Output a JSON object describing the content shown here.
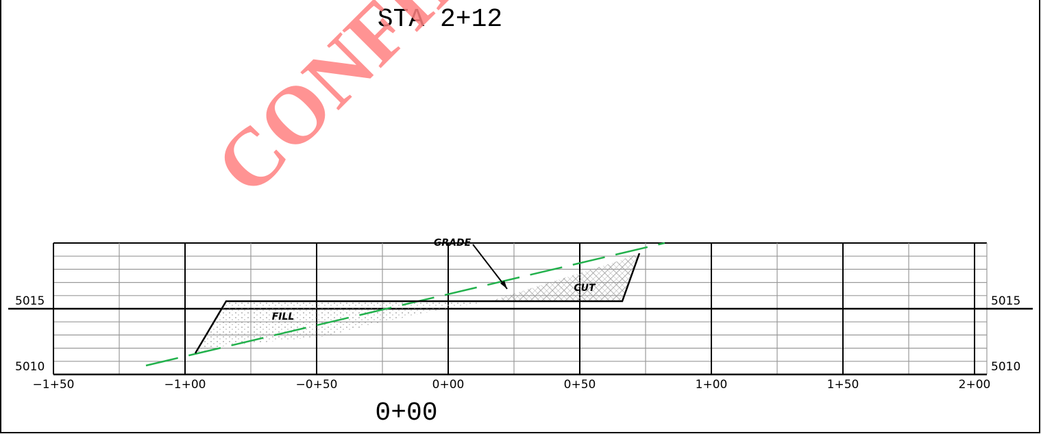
{
  "title": "STA 2+12",
  "watermark": "CONFIDE",
  "station_labels": [
    "−1+50",
    "−1+00",
    "−0+50",
    "0+00",
    "0+50",
    "1+00",
    "1+50",
    "2+00"
  ],
  "elevation_labels": {
    "left": [
      "5015",
      "5010"
    ],
    "right": [
      "5015",
      "5010"
    ]
  },
  "annotations": {
    "grade": "GRADE",
    "cut": "CUT",
    "fill": "FILL"
  },
  "footer": "0+00"
}
